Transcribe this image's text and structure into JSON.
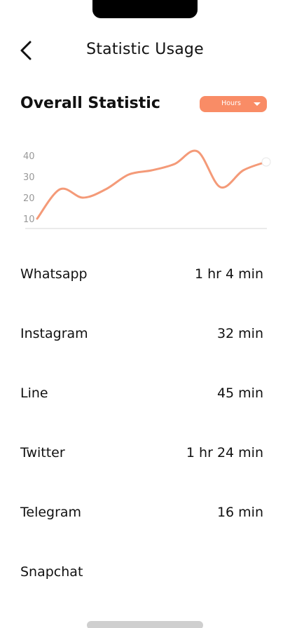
{
  "header": {
    "title": "Statistic Usage",
    "back_icon": "chevron-left-icon"
  },
  "overview": {
    "heading": "Overall Statistic",
    "period_selector": {
      "selected": "Hours",
      "icon": "caret-down-icon"
    }
  },
  "colors": {
    "accent": "#f98c66",
    "text": "#111111",
    "axis": "#999999"
  },
  "chart_data": {
    "type": "line",
    "title": "",
    "xlabel": "",
    "ylabel": "",
    "yticks": [
      "40",
      "30",
      "20",
      "10"
    ],
    "ylim": [
      10,
      40
    ],
    "grid": false,
    "series": [
      {
        "values": [
          10,
          24,
          20,
          24,
          31,
          33,
          36,
          42,
          25,
          33,
          37
        ]
      }
    ]
  },
  "apps": [
    {
      "name": "Whatsapp",
      "time": "1 hr 4 min"
    },
    {
      "name": "Instagram",
      "time": "32 min"
    },
    {
      "name": "Line",
      "time": "45 min"
    },
    {
      "name": "Twitter",
      "time": "1 hr 24 min"
    },
    {
      "name": "Telegram",
      "time": "16 min"
    },
    {
      "name": "Snapchat",
      "time": ""
    }
  ]
}
